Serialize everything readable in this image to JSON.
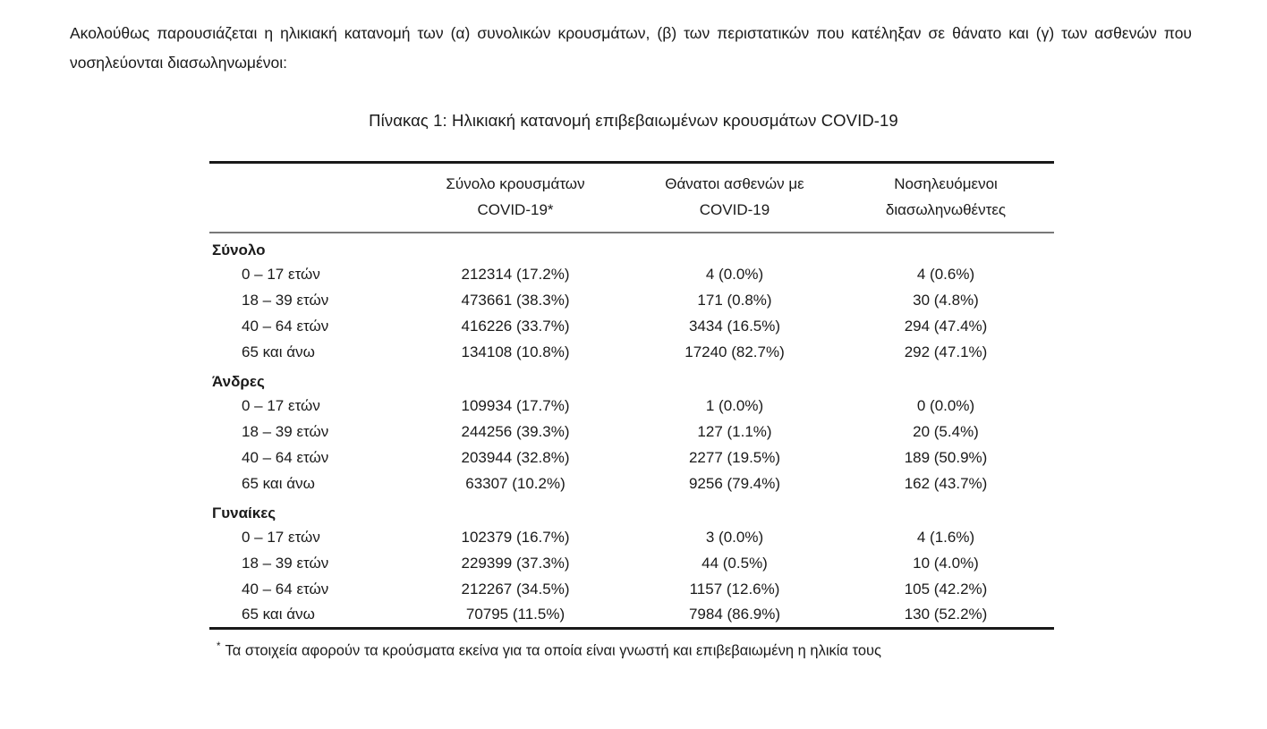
{
  "page": {
    "background": "#ffffff",
    "text_color": "#1a1a1a",
    "rule_color_strong": "#191919",
    "rule_color_header": "#787878"
  },
  "intro": "Ακολούθως παρουσιάζεται η ηλικιακή κατανομή των (α) συνολικών κρουσμάτων, (β) των περιστατικών που κατέληξαν σε θάνατο και (γ) των ασθενών που νοσηλεύονται διασωληνωμένοι:",
  "table": {
    "title": "Πίνακας 1: Ηλικιακή κατανομή επιβεβαιωμένων κρουσμάτων COVID-19",
    "columns": [
      {
        "line1": "",
        "line2": ""
      },
      {
        "line1": "Σύνολο κρουσμάτων",
        "line2": "COVID-19*"
      },
      {
        "line1": "Θάνατοι ασθενών με",
        "line2": "COVID-19"
      },
      {
        "line1": "Νοσηλευόμενοι",
        "line2": "διασωληνωθέντες"
      }
    ],
    "sections": [
      {
        "label": "Σύνολο",
        "rows": [
          {
            "age": "0 – 17 ετών",
            "cases": "212314 (17.2%)",
            "deaths": "4 (0.0%)",
            "intubated": "4 (0.6%)"
          },
          {
            "age": "18 – 39 ετών",
            "cases": "473661 (38.3%)",
            "deaths": "171 (0.8%)",
            "intubated": "30 (4.8%)"
          },
          {
            "age": "40 – 64 ετών",
            "cases": "416226 (33.7%)",
            "deaths": "3434 (16.5%)",
            "intubated": "294 (47.4%)"
          },
          {
            "age": "65 και άνω",
            "cases": "134108 (10.8%)",
            "deaths": "17240 (82.7%)",
            "intubated": "292 (47.1%)"
          }
        ]
      },
      {
        "label": "Άνδρες",
        "rows": [
          {
            "age": "0 – 17 ετών",
            "cases": "109934 (17.7%)",
            "deaths": "1 (0.0%)",
            "intubated": "0 (0.0%)"
          },
          {
            "age": "18 – 39 ετών",
            "cases": "244256 (39.3%)",
            "deaths": "127 (1.1%)",
            "intubated": "20 (5.4%)"
          },
          {
            "age": "40 – 64 ετών",
            "cases": "203944 (32.8%)",
            "deaths": "2277 (19.5%)",
            "intubated": "189 (50.9%)"
          },
          {
            "age": "65 και άνω",
            "cases": "63307 (10.2%)",
            "deaths": "9256 (79.4%)",
            "intubated": "162 (43.7%)"
          }
        ]
      },
      {
        "label": "Γυναίκες",
        "rows": [
          {
            "age": "0 – 17 ετών",
            "cases": "102379 (16.7%)",
            "deaths": "3 (0.0%)",
            "intubated": "4 (1.6%)"
          },
          {
            "age": "18 – 39 ετών",
            "cases": "229399 (37.3%)",
            "deaths": "44 (0.5%)",
            "intubated": "10 (4.0%)"
          },
          {
            "age": "40 – 64 ετών",
            "cases": "212267 (34.5%)",
            "deaths": "1157 (12.6%)",
            "intubated": "105 (42.2%)"
          },
          {
            "age": "65 και άνω",
            "cases": "70795 (11.5%)",
            "deaths": "7984 (86.9%)",
            "intubated": "130 (52.2%)"
          }
        ]
      }
    ]
  },
  "footnote": {
    "marker": "*",
    "text": "Τα στοιχεία αφορούν τα κρούσματα εκείνα για τα οποία είναι γνωστή και επιβεβαιωμένη η ηλικία τους"
  }
}
